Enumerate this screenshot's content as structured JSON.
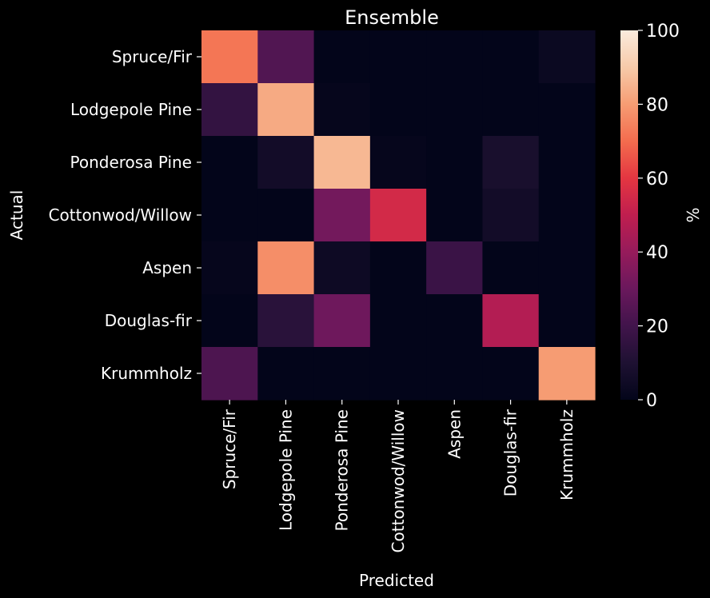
{
  "chart_data": {
    "type": "heatmap",
    "title": "Ensemble",
    "xlabel": "Predicted",
    "ylabel": "Actual",
    "colorbar_label": "%",
    "colorbar_range": [
      0,
      100
    ],
    "colorbar_ticks": [
      "0",
      "20",
      "40",
      "60",
      "80",
      "100"
    ],
    "rows": [
      "Spruce/Fir",
      "Lodgepole Pine",
      "Ponderosa Pine",
      "Cottonwod/Willow",
      "Aspen",
      "Douglas-fir",
      "Krummholz"
    ],
    "columns": [
      "Spruce/Fir",
      "Lodgepole Pine",
      "Ponderosa Pine",
      "Cottonwod/Willow",
      "Aspen",
      "Douglas-fir",
      "Krummholz"
    ],
    "values": [
      [
        72,
        24,
        0,
        0,
        0,
        0,
        3
      ],
      [
        16,
        83,
        1,
        0,
        0,
        0,
        0
      ],
      [
        0,
        6,
        86,
        1,
        0,
        8,
        0
      ],
      [
        0,
        0,
        32,
        55,
        0,
        6,
        0
      ],
      [
        1,
        77,
        4,
        0,
        18,
        0,
        0
      ],
      [
        0,
        13,
        31,
        0,
        0,
        47,
        0
      ],
      [
        23,
        0,
        0,
        0,
        0,
        0,
        80
      ]
    ]
  }
}
